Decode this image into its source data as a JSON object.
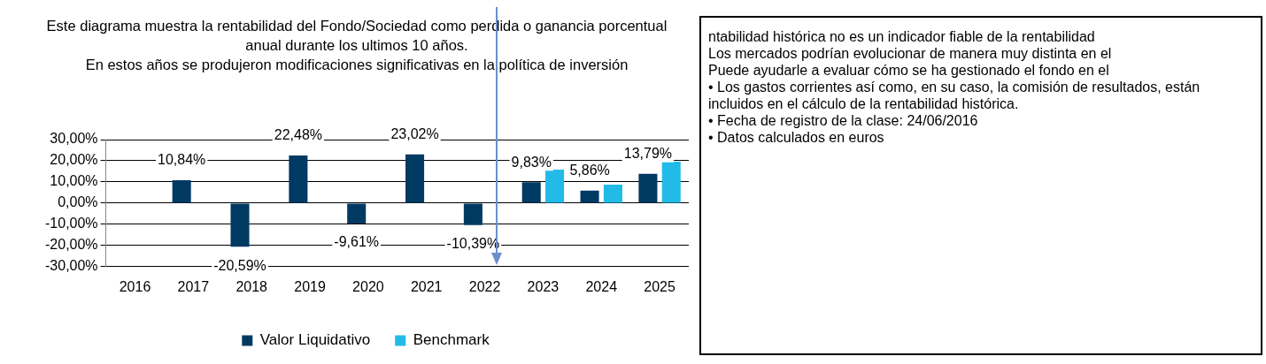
{
  "chart_data": {
    "type": "bar",
    "title": "Este diagrama muestra la rentabilidad del Fondo/Sociedad como perdida o ganancia porcentual anual durante los ultimos 10 años.",
    "subtitle": "En estos años se produjeron modificaciones significativas en la política de inversión",
    "categories": [
      "2016",
      "2017",
      "2018",
      "2019",
      "2020",
      "2021",
      "2022",
      "2023",
      "2024",
      "2025"
    ],
    "series": [
      {
        "name": "Valor Liquidativo",
        "color": "#003a63",
        "values": [
          null,
          10.84,
          -20.59,
          22.48,
          -9.61,
          23.02,
          -10.39,
          9.83,
          5.86,
          13.79
        ],
        "value_labels": [
          null,
          "10,84%",
          "-20,59%",
          "22,48%",
          "-9,61%",
          "23,02%",
          "-10,39%",
          "9,83%",
          "5,86%",
          "13,79%"
        ]
      },
      {
        "name": "Benchmark",
        "color": "#22bbe8",
        "values": [
          null,
          null,
          null,
          null,
          null,
          null,
          null,
          15.8,
          8.7,
          19.6
        ]
      }
    ],
    "ylim": [
      -30,
      30
    ],
    "yticks": [
      {
        "value": -30,
        "label": "-30,00%"
      },
      {
        "value": -20,
        "label": "-20,00%"
      },
      {
        "value": -10,
        "label": "-10,00%"
      },
      {
        "value": 0,
        "label": "0,00%"
      },
      {
        "value": 10,
        "label": "10,00%"
      },
      {
        "value": 20,
        "label": "20,00%"
      },
      {
        "value": 30,
        "label": "30,00%"
      }
    ],
    "grid": "y",
    "legend": "bottom",
    "annotations": [
      "ntabilidad histórica no es un indicador fiable de la rentabilidad",
      "Los mercados podrían evolucionar de manera muy distinta en el",
      "Puede ayudarle a evaluar cómo se ha gestionado el fondo en el",
      "• Los gastos corrientes así como, en su caso, la comisión de resultados, están incluidos en el cálculo de la rentabilidad histórica.",
      "• Fecha de registro de la clase: 24/06/2016",
      "• Datos calculados en euros"
    ]
  }
}
